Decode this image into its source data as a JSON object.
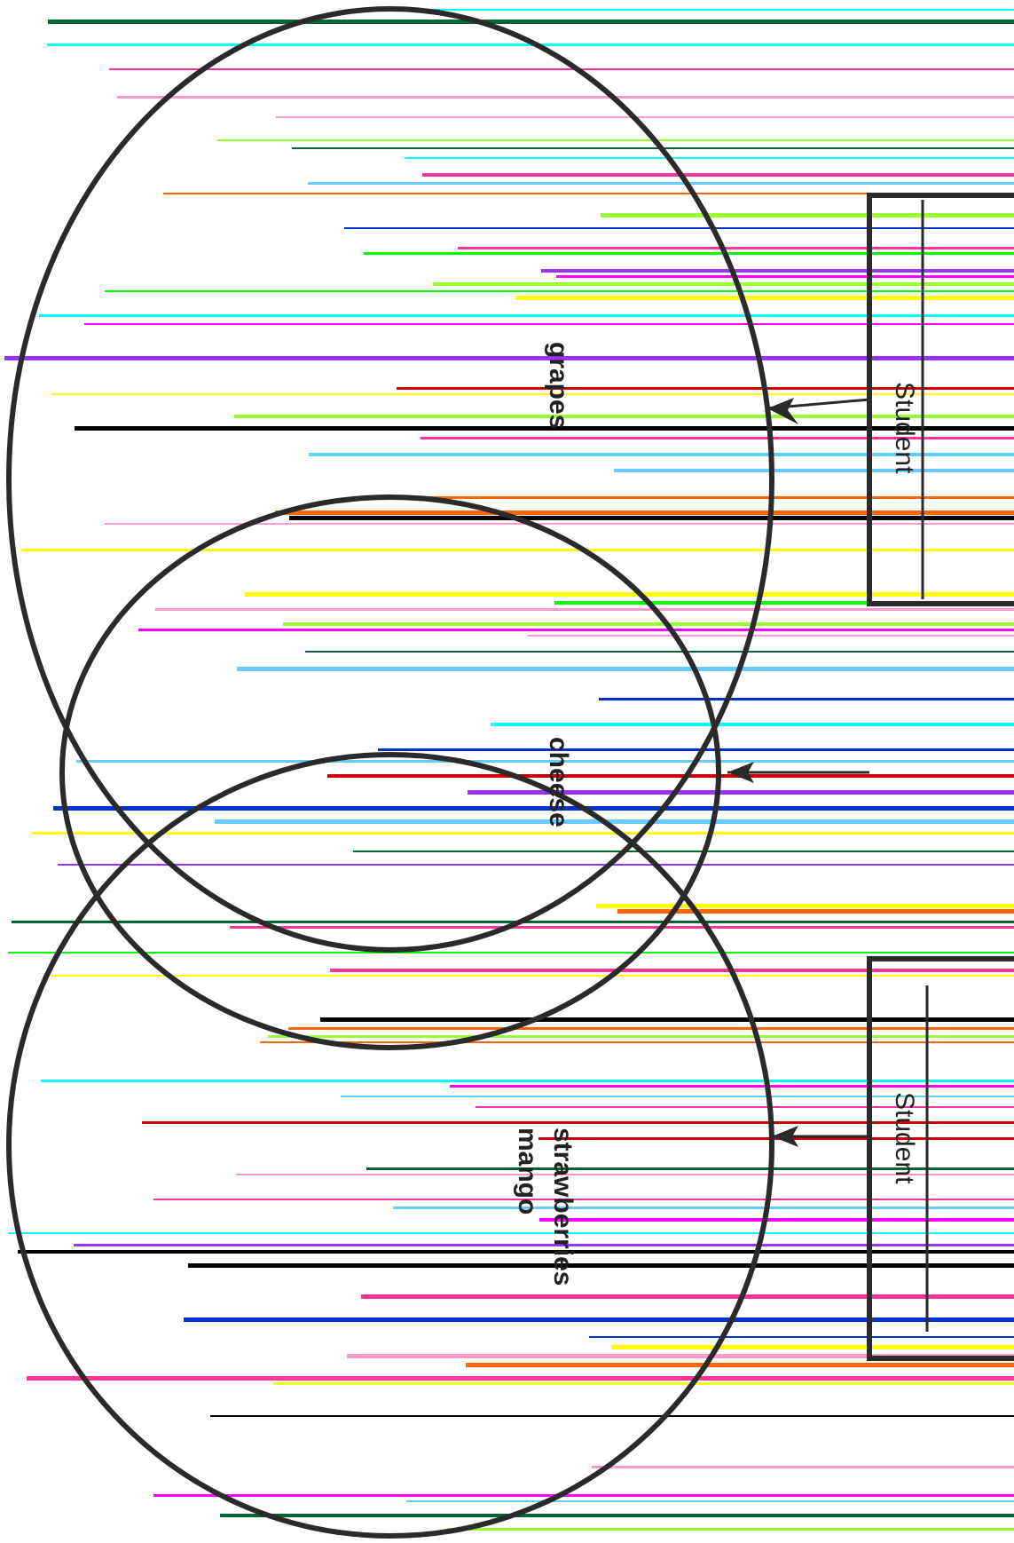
{
  "colors": {
    "outline": "#2a2a2a",
    "text": "#222222",
    "background": "#ffffff"
  },
  "circles": [
    {
      "id": "upper",
      "items": [
        "grapes"
      ]
    },
    {
      "id": "middle",
      "items": [
        "cheese"
      ]
    },
    {
      "id": "lower",
      "items": [
        "strawberries",
        "mango"
      ]
    }
  ],
  "boxes": [
    {
      "id": "upper-box",
      "label": "Student",
      "secondary": ""
    },
    {
      "id": "lower-box",
      "label": "Student",
      "secondary": ""
    }
  ],
  "stripe_palette": [
    "#ff00ff",
    "#00ff00",
    "#ffff00",
    "#00ffff",
    "#0033cc",
    "#cc0000",
    "#9933ff",
    "#ff99cc",
    "#006633",
    "#000000",
    "#ff6600",
    "#66ccff",
    "#99ff33",
    "#ff3399"
  ]
}
